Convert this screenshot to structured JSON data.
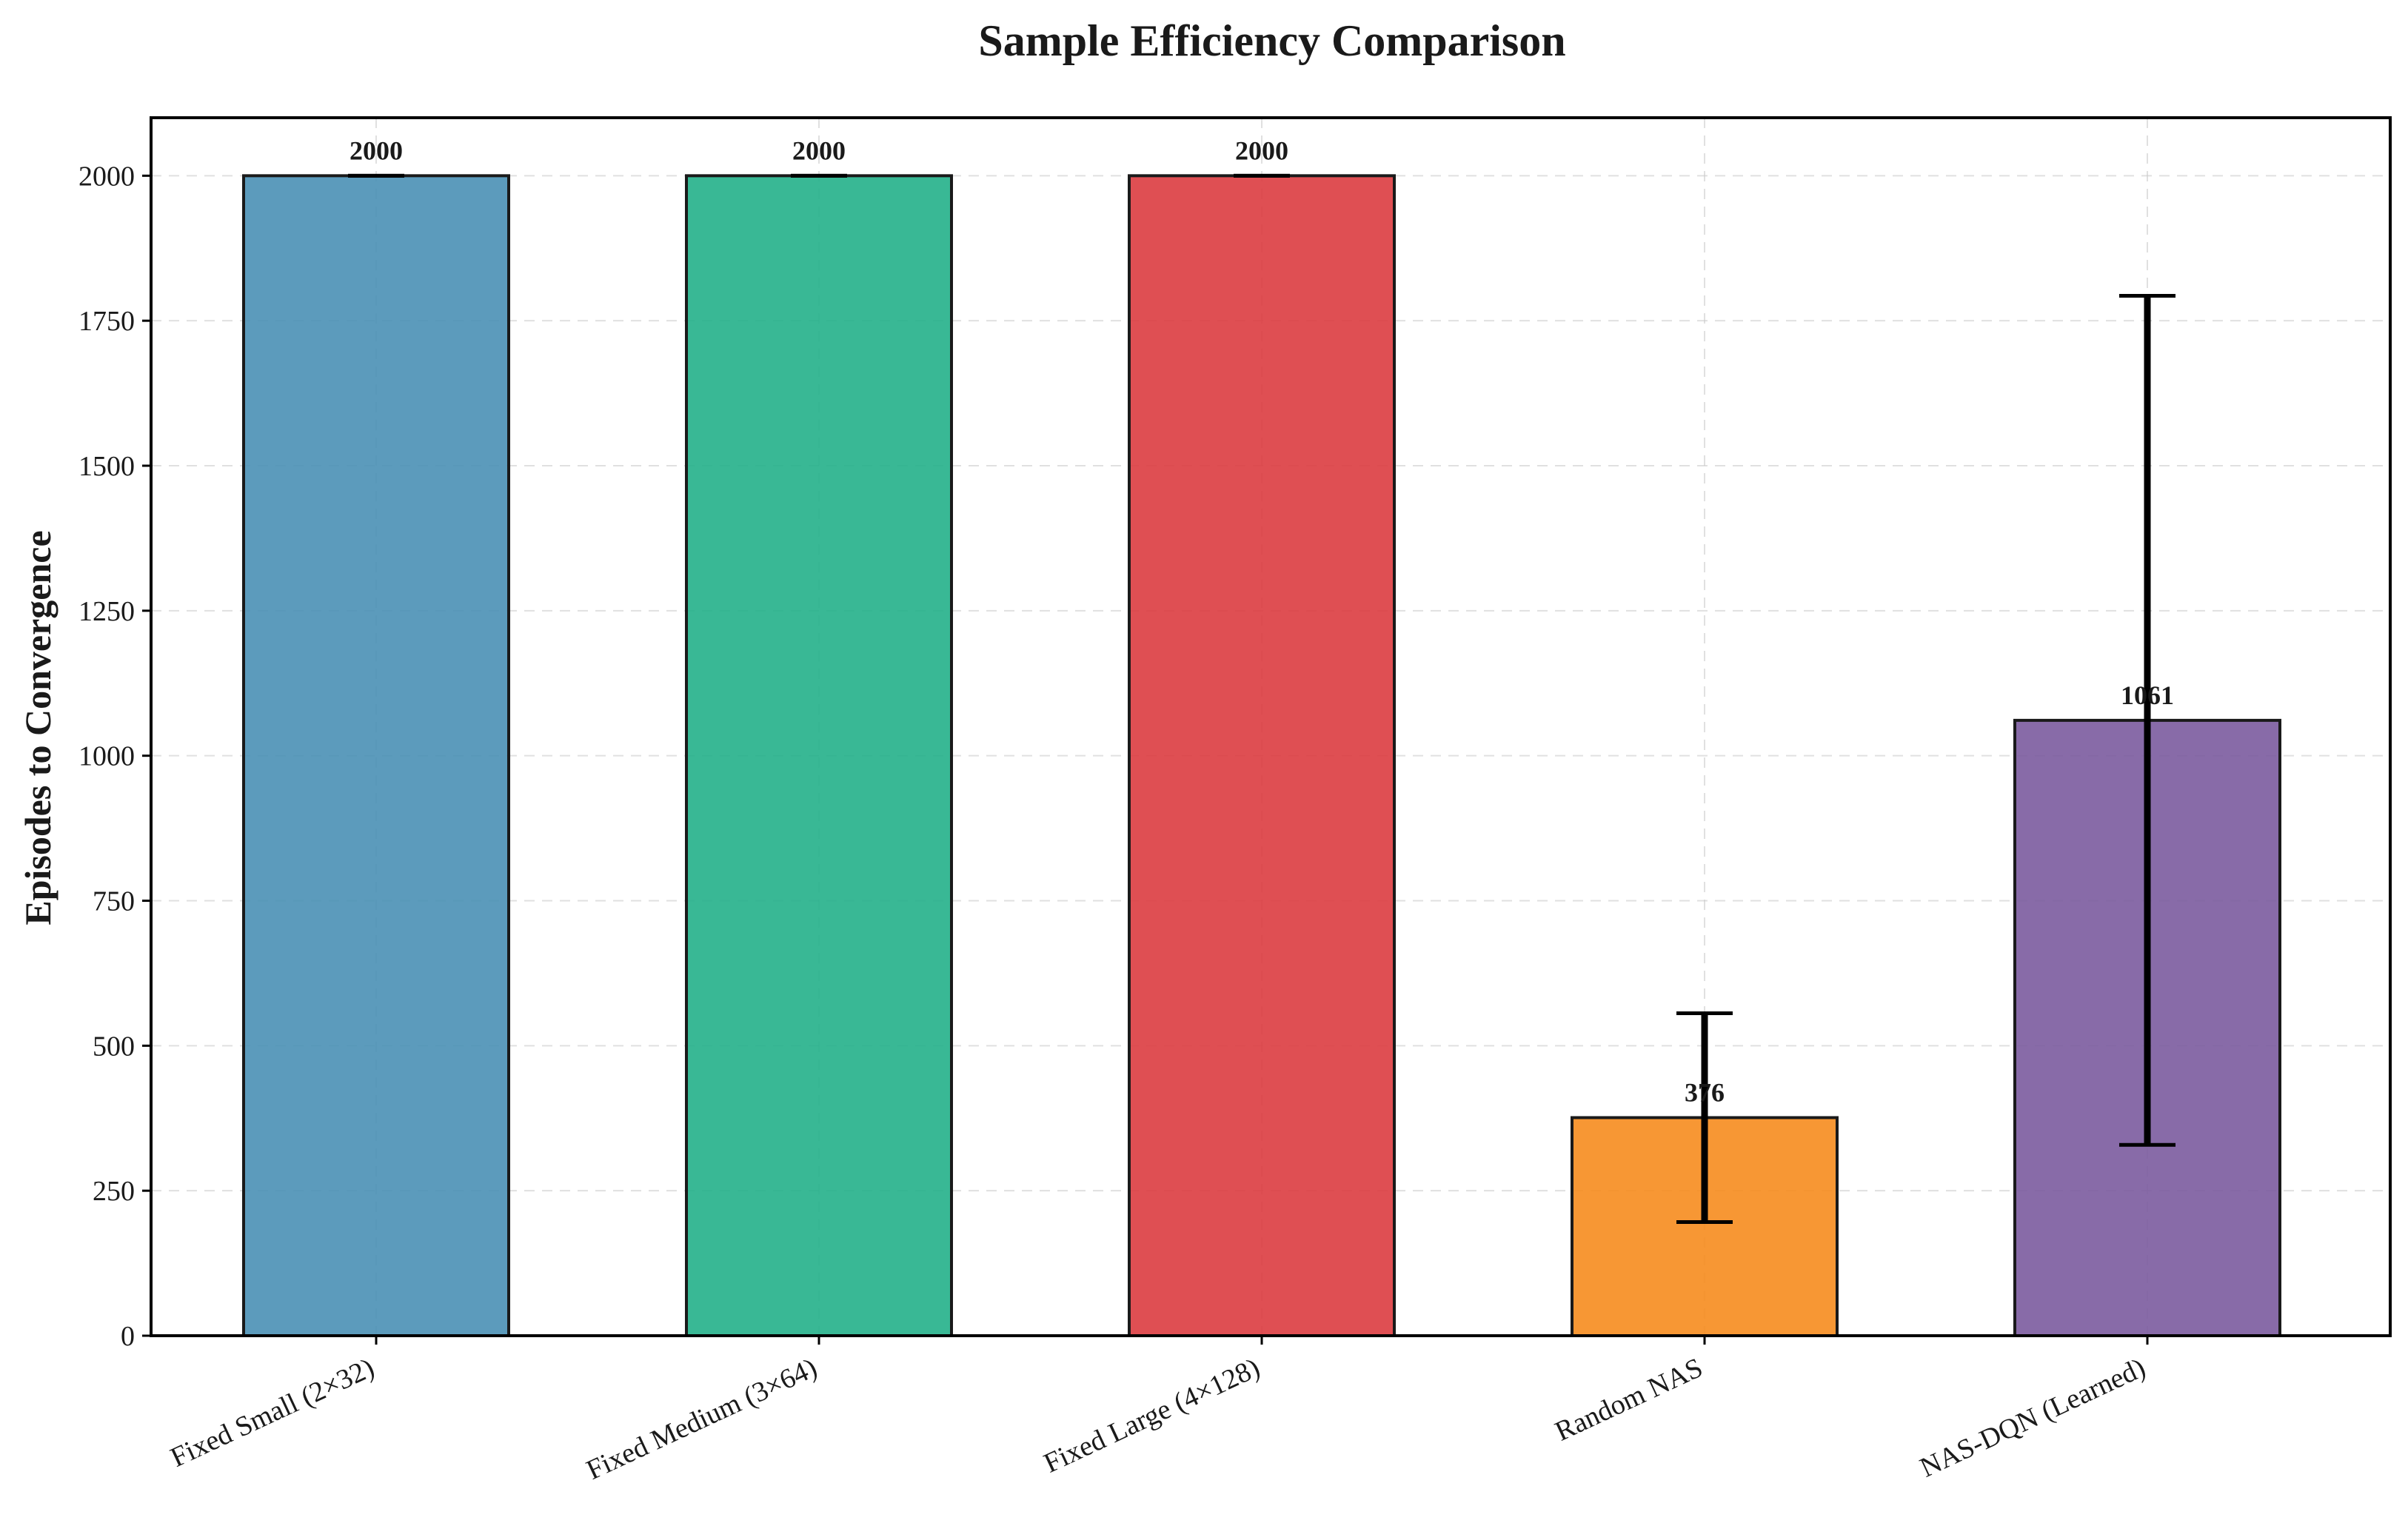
{
  "chart_data": {
    "type": "bar",
    "title": "Sample Efficiency Comparison",
    "xlabel": "",
    "ylabel": "Episodes to Convergence",
    "ylim": [
      0,
      2100
    ],
    "yticks": [
      0,
      250,
      500,
      750,
      1000,
      1250,
      1500,
      1750,
      2000
    ],
    "grid": true,
    "categories": [
      "Fixed Small (2×32)",
      "Fixed Medium (3×64)",
      "Fixed Large (4×128)",
      "Random NAS",
      "NAS-DQN (Learned)"
    ],
    "values": [
      2000,
      2000,
      2000,
      376,
      1061
    ],
    "value_labels": [
      "2000",
      "2000",
      "2000",
      "376",
      "1061"
    ],
    "errors": [
      0,
      0,
      0,
      180,
      732
    ],
    "colors": [
      "#4a90b5",
      "#23b08a",
      "#dc3c40",
      "#f68c1e",
      "#7b5b9e"
    ]
  }
}
